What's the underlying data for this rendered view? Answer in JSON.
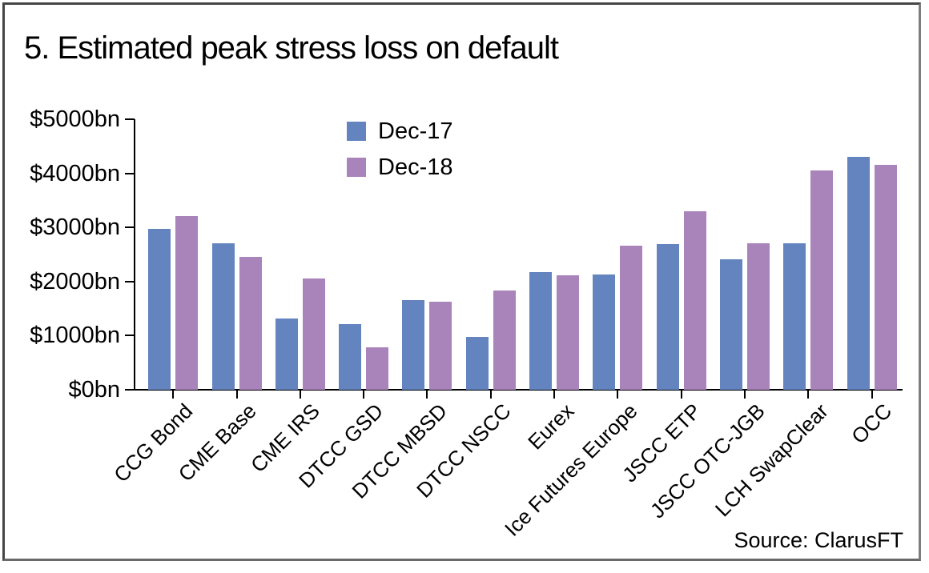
{
  "footer": {
    "source": "Source: ClarusFT"
  },
  "colors": {
    "dec17_blue": "#6484C0",
    "dec18_purple": "#A884BA",
    "axis": "#000000",
    "frame_border": "#4c4c4e"
  },
  "chart_data": {
    "type": "bar",
    "title": "5. Estimated peak stress loss on default",
    "categories": [
      "CCG Bond",
      "CME Base",
      "CME IRS",
      "DTCC GSD",
      "DTCC MBSD",
      "DTCC NSCC",
      "Eurex",
      "Ice Futures Europe",
      "JSCC ETP",
      "JSCC OTC-JGB",
      "LCH SwapClear",
      "OCC"
    ],
    "series": [
      {
        "name": "Dec-17",
        "color": "#6484C0",
        "values": [
          2970,
          2700,
          1310,
          1220,
          1660,
          970,
          2170,
          2130,
          2690,
          2410,
          2710,
          4300
        ]
      },
      {
        "name": "Dec-18",
        "color": "#A884BA",
        "values": [
          3210,
          2450,
          2050,
          790,
          1620,
          1830,
          2110,
          2660,
          3300,
          2700,
          4060,
          4150
        ]
      }
    ],
    "xlabel": "",
    "ylabel": "",
    "ylim": [
      0,
      5000
    ],
    "ytick_values": [
      0,
      1000,
      2000,
      3000,
      4000,
      5000
    ],
    "ytick_labels": [
      "$0bn",
      "$1000bn",
      "$2000bn",
      "$3000bn",
      "$4000bn",
      "$5000bn"
    ],
    "grid": false,
    "legend_position": "top-inside-left-of-center",
    "source": "Source: ClarusFT"
  }
}
